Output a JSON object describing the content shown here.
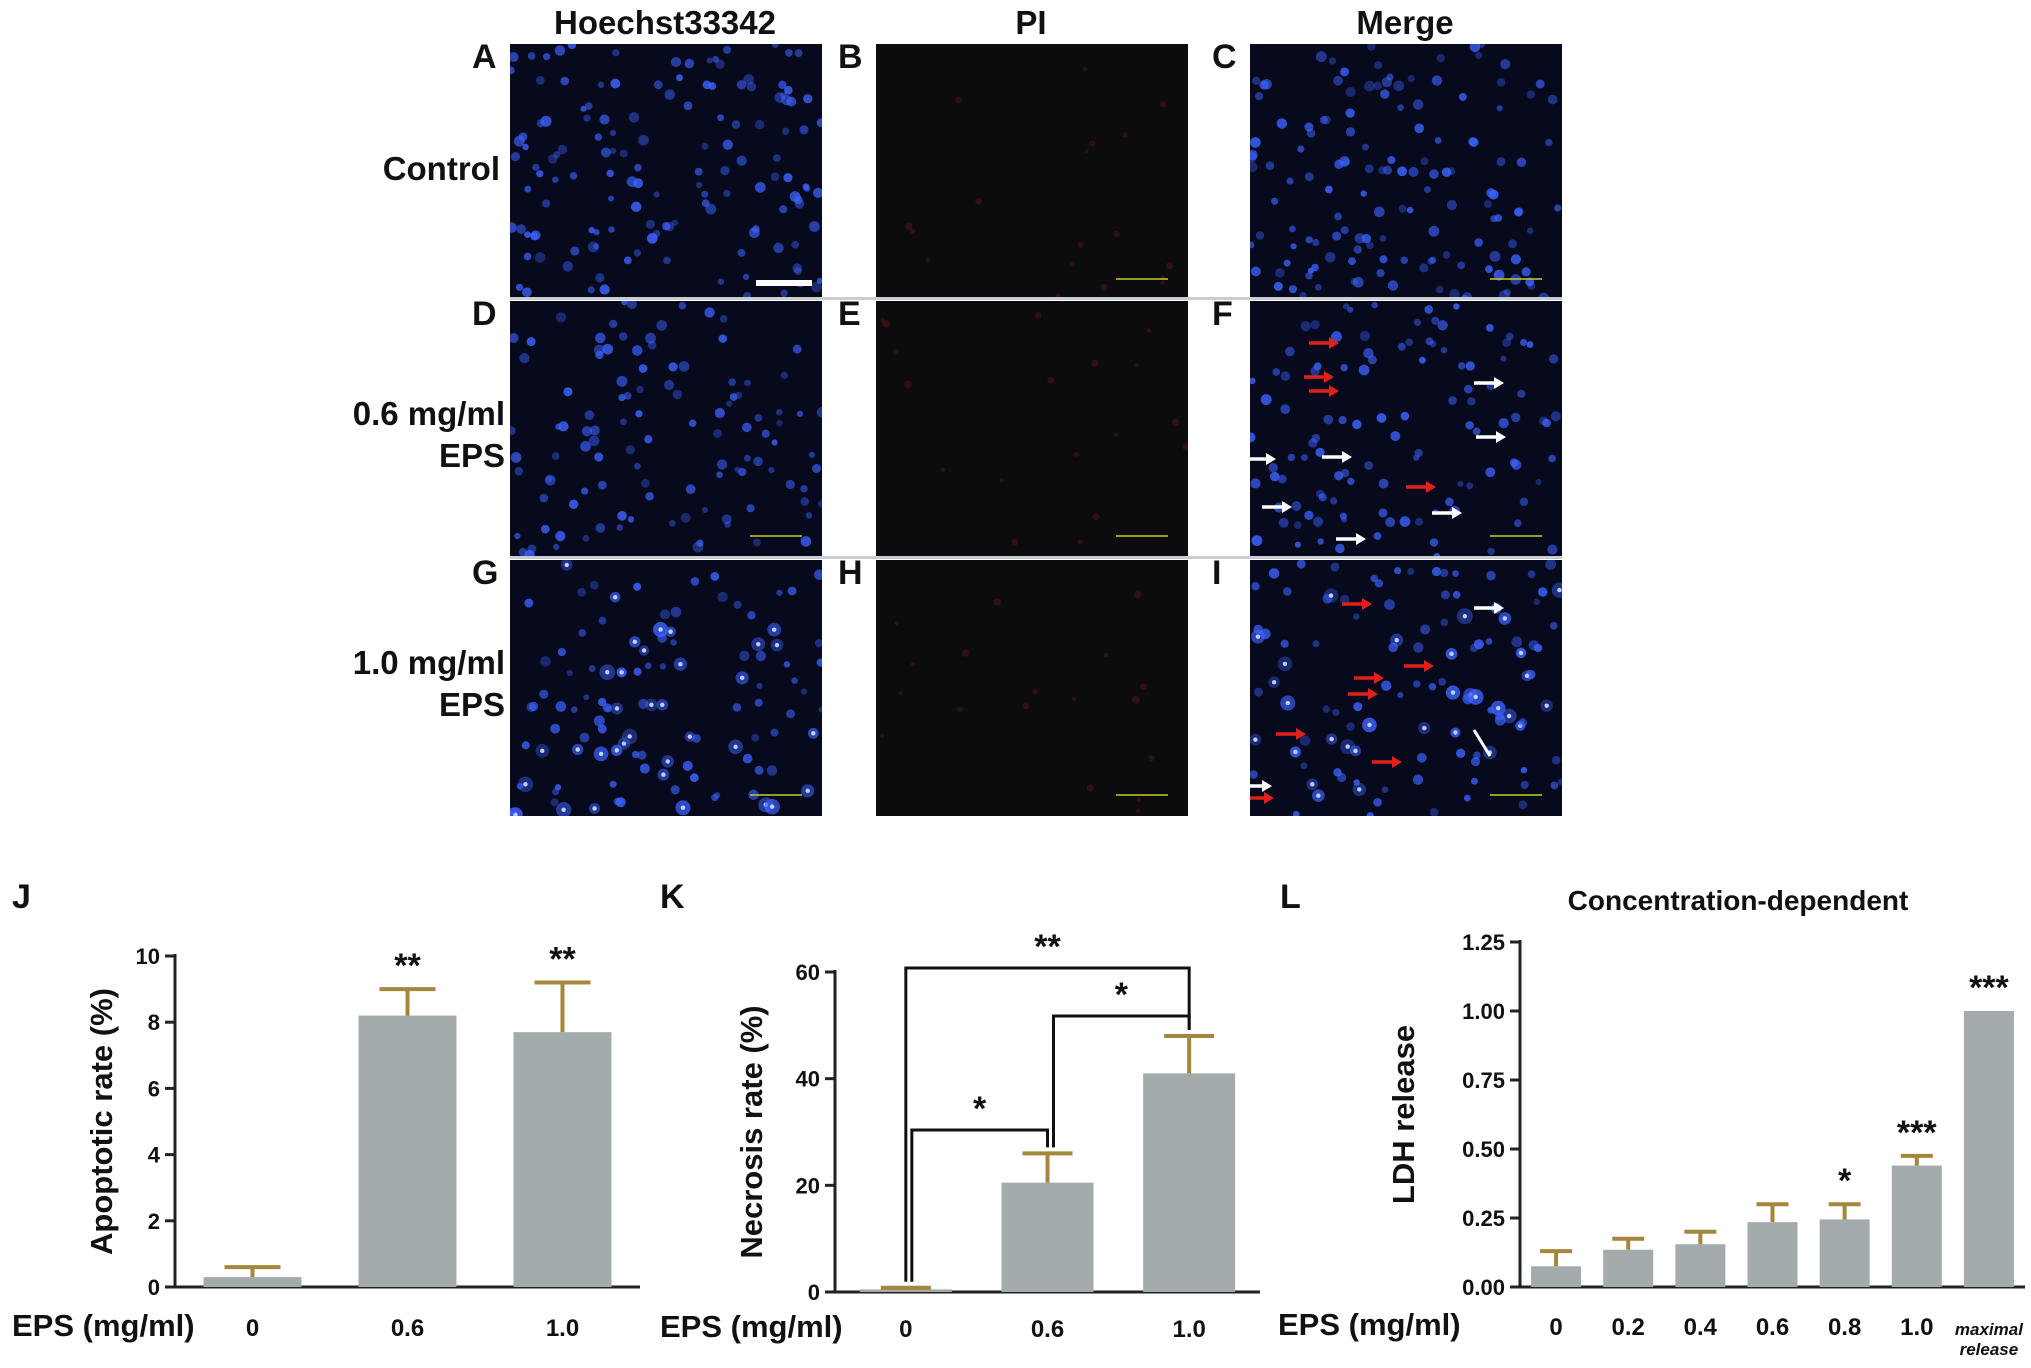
{
  "figure": {
    "column_titles": [
      "Hoechst33342",
      "PI",
      "Merge"
    ],
    "row_labels": [
      "Control",
      "0.6 mg/ml\nEPS",
      "1.0 mg/ml\nEPS"
    ],
    "image_panel_letters": [
      "A",
      "B",
      "C",
      "D",
      "E",
      "F",
      "G",
      "H",
      "I"
    ],
    "colors": {
      "hoechst_bg": "#07091c",
      "pi_bg": "#0c0b0d",
      "nucleus": "#3d63ff",
      "arrow_red": "#e0201b",
      "arrow_white": "#ffffff",
      "bar": "#a3abac",
      "errorbar": "#a4863d"
    }
  },
  "chart_data": [
    {
      "panel": "J",
      "type": "bar",
      "categories": [
        "0",
        "0.6",
        "1.0"
      ],
      "values": [
        0.3,
        8.2,
        7.7
      ],
      "errors": [
        0.3,
        0.8,
        1.5
      ],
      "significance": [
        "",
        "**",
        "**"
      ],
      "xlabel": "EPS (mg/ml)",
      "ylabel": "Apoptotic rate (%)",
      "ylim": [
        0,
        10
      ],
      "yticks": [
        "0",
        "2",
        "4",
        "6",
        "8",
        "10"
      ]
    },
    {
      "panel": "K",
      "type": "bar",
      "categories": [
        "0",
        "0.6",
        "1.0"
      ],
      "values": [
        0.5,
        20.5,
        41
      ],
      "errors": [
        0.3,
        5.5,
        7
      ],
      "brackets": [
        {
          "from": 0,
          "to": 1,
          "label": "*"
        },
        {
          "from": 1,
          "to": 2,
          "label": "*"
        },
        {
          "from": 0,
          "to": 2,
          "label": "**"
        }
      ],
      "xlabel": "EPS (mg/ml)",
      "ylabel": "Necrosis rate (%)",
      "ylim": [
        0,
        60
      ],
      "yticks": [
        "0",
        "20",
        "40",
        "60"
      ]
    },
    {
      "panel": "L",
      "type": "bar",
      "title": "Concentration-dependent",
      "categories": [
        "0",
        "0.2",
        "0.4",
        "0.6",
        "0.8",
        "1.0",
        "maximal\nrelease"
      ],
      "values": [
        0.075,
        0.135,
        0.155,
        0.235,
        0.245,
        0.44,
        1.0
      ],
      "errors": [
        0.055,
        0.04,
        0.045,
        0.065,
        0.055,
        0.035,
        0
      ],
      "significance": [
        "",
        "",
        "",
        "",
        "*",
        "***",
        "***"
      ],
      "xlabel": "EPS (mg/ml)",
      "ylabel": "LDH release",
      "ylim": [
        0,
        1.25
      ],
      "yticks": [
        "0.00",
        "0.25",
        "0.50",
        "0.75",
        "1.00",
        "1.25"
      ]
    }
  ]
}
